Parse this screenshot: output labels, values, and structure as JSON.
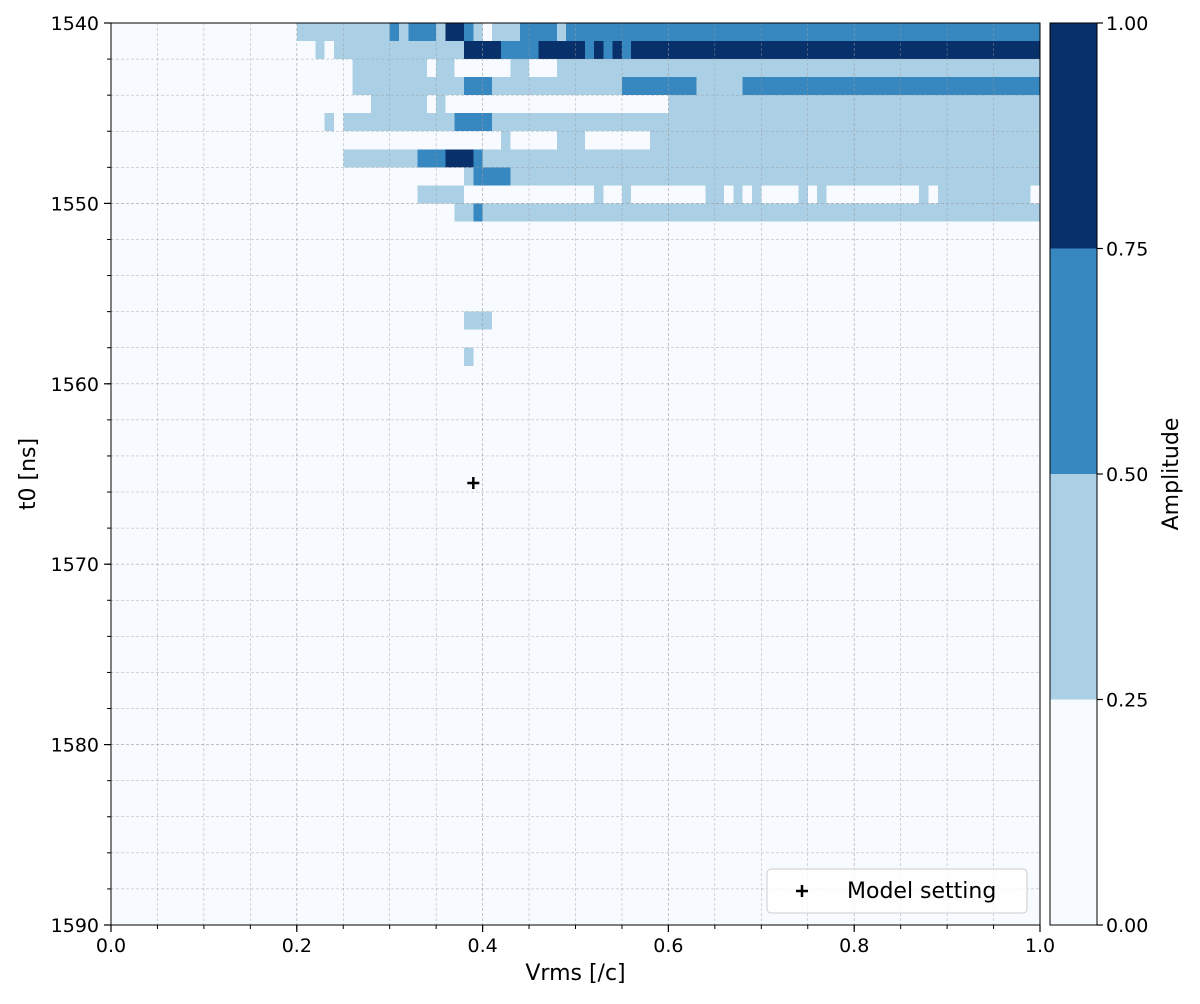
{
  "chart_data": {
    "type": "heatmap",
    "title": "",
    "xlabel": "Vrms [/c]",
    "ylabel": "t0 [ns]",
    "xlim": [
      0.0,
      1.0
    ],
    "ylim": [
      1590,
      1540
    ],
    "y_inverted": true,
    "grid": true,
    "grid_style": "dashed",
    "x_ticks": [
      0.0,
      0.2,
      0.4,
      0.6,
      0.8,
      1.0
    ],
    "x_tick_labels": [
      "0.0",
      "0.2",
      "0.4",
      "0.6",
      "0.8",
      "1.0"
    ],
    "y_ticks": [
      1540,
      1550,
      1560,
      1570,
      1580,
      1590
    ],
    "y_tick_labels": [
      "1540",
      "1550",
      "1560",
      "1570",
      "1580",
      "1590"
    ],
    "cell_width_vrms": 0.01,
    "cell_height_ns": 1,
    "background_level": 0,
    "colorbar": {
      "label": "Amplitude",
      "boundaries": [
        0.0,
        0.25,
        0.5,
        0.75,
        1.0
      ],
      "tick_labels": [
        "0.00",
        "0.25",
        "0.50",
        "0.75",
        "1.00"
      ],
      "colors": [
        "#f7fbff",
        "#abd0e6",
        "#3787c0",
        "#08306b"
      ]
    },
    "level_meaning": [
      "0.00-0.25",
      "0.25-0.50",
      "0.50-0.75",
      "0.75-1.00"
    ],
    "cells": [
      {
        "t0": 1540,
        "runs": [
          [
            0.2,
            0.3,
            1
          ],
          [
            0.3,
            0.31,
            2
          ],
          [
            0.31,
            0.32,
            1
          ],
          [
            0.32,
            0.35,
            2
          ],
          [
            0.35,
            0.36,
            1
          ],
          [
            0.36,
            0.38,
            3
          ],
          [
            0.38,
            0.39,
            2
          ],
          [
            0.39,
            0.4,
            1
          ],
          [
            0.4,
            0.41,
            0
          ],
          [
            0.41,
            0.44,
            1
          ],
          [
            0.44,
            0.48,
            2
          ],
          [
            0.48,
            0.49,
            1
          ],
          [
            0.49,
            1.0,
            2
          ]
        ]
      },
      {
        "t0": 1541,
        "runs": [
          [
            0.22,
            0.23,
            1
          ],
          [
            0.24,
            0.38,
            1
          ],
          [
            0.38,
            0.42,
            3
          ],
          [
            0.42,
            0.46,
            2
          ],
          [
            0.46,
            0.51,
            3
          ],
          [
            0.51,
            0.52,
            2
          ],
          [
            0.52,
            0.53,
            3
          ],
          [
            0.53,
            0.54,
            2
          ],
          [
            0.54,
            0.55,
            3
          ],
          [
            0.55,
            0.56,
            2
          ],
          [
            0.56,
            1.0,
            3
          ]
        ]
      },
      {
        "t0": 1542,
        "runs": [
          [
            0.26,
            0.34,
            1
          ],
          [
            0.35,
            0.37,
            1
          ],
          [
            0.43,
            0.45,
            1
          ],
          [
            0.48,
            1.0,
            1
          ]
        ]
      },
      {
        "t0": 1543,
        "runs": [
          [
            0.26,
            0.38,
            1
          ],
          [
            0.38,
            0.41,
            2
          ],
          [
            0.41,
            0.55,
            1
          ],
          [
            0.55,
            0.63,
            2
          ],
          [
            0.63,
            0.68,
            1
          ],
          [
            0.68,
            1.0,
            2
          ]
        ]
      },
      {
        "t0": 1544,
        "runs": [
          [
            0.28,
            0.34,
            1
          ],
          [
            0.35,
            0.36,
            1
          ],
          [
            0.6,
            1.0,
            1
          ]
        ]
      },
      {
        "t0": 1545,
        "runs": [
          [
            0.23,
            0.24,
            1
          ],
          [
            0.25,
            0.37,
            1
          ],
          [
            0.37,
            0.41,
            2
          ],
          [
            0.41,
            1.0,
            1
          ]
        ]
      },
      {
        "t0": 1546,
        "runs": [
          [
            0.42,
            0.43,
            1
          ],
          [
            0.48,
            0.51,
            1
          ],
          [
            0.58,
            1.0,
            1
          ]
        ]
      },
      {
        "t0": 1547,
        "runs": [
          [
            0.25,
            0.33,
            1
          ],
          [
            0.33,
            0.36,
            2
          ],
          [
            0.36,
            0.39,
            3
          ],
          [
            0.39,
            0.4,
            2
          ],
          [
            0.4,
            1.0,
            1
          ]
        ]
      },
      {
        "t0": 1548,
        "runs": [
          [
            0.38,
            0.39,
            1
          ],
          [
            0.39,
            0.43,
            2
          ],
          [
            0.43,
            1.0,
            1
          ]
        ]
      },
      {
        "t0": 1549,
        "runs": [
          [
            0.33,
            0.38,
            1
          ],
          [
            0.52,
            0.53,
            1
          ],
          [
            0.55,
            0.56,
            1
          ],
          [
            0.64,
            0.66,
            1
          ],
          [
            0.67,
            0.68,
            1
          ],
          [
            0.69,
            0.7,
            1
          ],
          [
            0.74,
            0.75,
            1
          ],
          [
            0.76,
            0.77,
            1
          ],
          [
            0.87,
            0.88,
            1
          ],
          [
            0.89,
            0.99,
            1
          ]
        ]
      },
      {
        "t0": 1550,
        "runs": [
          [
            0.37,
            0.39,
            1
          ],
          [
            0.39,
            0.4,
            2
          ],
          [
            0.4,
            1.0,
            1
          ]
        ]
      },
      {
        "t0": 1556,
        "runs": [
          [
            0.38,
            0.41,
            1
          ]
        ]
      },
      {
        "t0": 1558,
        "runs": [
          [
            0.38,
            0.39,
            1
          ]
        ]
      }
    ],
    "marker": {
      "label": "Model setting",
      "vrms": 0.39,
      "t0": 1565.5,
      "symbol": "+"
    },
    "legend": {
      "placement": "lower-right",
      "entries": [
        "Model setting"
      ]
    }
  }
}
